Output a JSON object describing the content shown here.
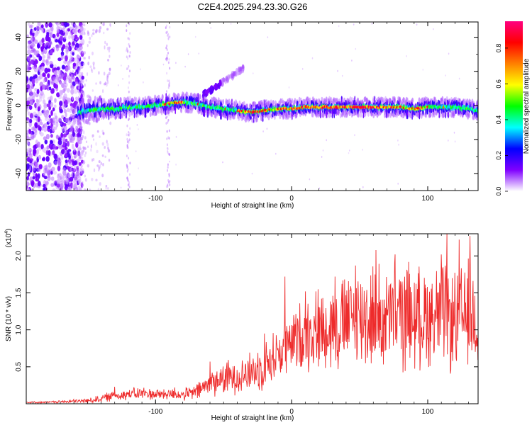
{
  "title": "C2E4.2025.294.23.30.G26",
  "chart_data": [
    {
      "type": "heatmap",
      "title": "C2E4.2025.294.23.30.G26",
      "xlabel": "Height of straight line (km)",
      "ylabel": "Frequency (Hz)",
      "xlim": [
        -195,
        137
      ],
      "ylim": [
        -50,
        49
      ],
      "xticks": [
        -100,
        0,
        100
      ],
      "yticks": [
        -40,
        -20,
        0,
        20,
        40
      ],
      "xtick_labels": [
        "-100",
        "0",
        "100"
      ],
      "ytick_labels": [
        "-40",
        "-20",
        "0",
        "20",
        "40"
      ],
      "ridge": {
        "x": [
          -157,
          -150,
          -140,
          -130,
          -120,
          -110,
          -100,
          -90,
          -80,
          -70,
          -60,
          -50,
          -40,
          -30,
          -20,
          -10,
          0,
          10,
          20,
          30,
          40,
          50,
          60,
          70,
          80,
          90,
          100,
          110,
          120,
          130,
          137
        ],
        "y": [
          -4,
          -3,
          -2,
          -2,
          -1,
          -1,
          0,
          1,
          2,
          1,
          -1,
          -2,
          -3,
          -4,
          -3,
          -2,
          -2,
          -1,
          -1,
          -1,
          -1,
          -1,
          -1,
          -1,
          -1,
          -2,
          -1,
          -1,
          -1,
          -2,
          -3
        ]
      },
      "diagonal_streak": {
        "x": [
          -65,
          -35
        ],
        "y": [
          6,
          22
        ]
      },
      "colorbar": {
        "label": "Normalized spectral amplitude",
        "range": [
          0,
          0.95
        ],
        "ticks": [
          0.0,
          0.2,
          0.4,
          0.6,
          0.8
        ],
        "tick_labels": [
          "0.0",
          "0.2",
          "0.4",
          "0.6",
          "0.8"
        ],
        "colors": [
          "#ffffff",
          "#8000ff",
          "#0000ff",
          "#00ffff",
          "#00ff00",
          "#ffff00",
          "#ff8000",
          "#ff0000",
          "#ff0080"
        ]
      }
    },
    {
      "type": "line",
      "xlabel": "Height of straight line (km)",
      "ylabel": "SNR (10 * v/v)",
      "scale_label": "(x10",
      "scale_exponent": "4",
      "scale_close": ")",
      "xlim": [
        -195,
        137
      ],
      "ylim": [
        0,
        2.3
      ],
      "xticks": [
        -100,
        0,
        100
      ],
      "yticks": [
        0.5,
        1.0,
        1.5,
        2.0
      ],
      "xtick_labels": [
        "-100",
        "0",
        "100"
      ],
      "ytick_labels": [
        "0.5",
        "1.0",
        "1.5",
        "2.0"
      ],
      "line_color": "#ee2b2b",
      "series": [
        {
          "name": "SNR",
          "x": [
            -195,
            -180,
            -165,
            -150,
            -140,
            -130,
            -120,
            -110,
            -100,
            -90,
            -80,
            -70,
            -60,
            -50,
            -40,
            -30,
            -20,
            -10,
            0,
            10,
            20,
            30,
            40,
            50,
            60,
            70,
            80,
            90,
            100,
            110,
            120,
            130,
            137
          ],
          "envelope": [
            0.02,
            0.02,
            0.03,
            0.04,
            0.07,
            0.11,
            0.13,
            0.14,
            0.13,
            0.13,
            0.12,
            0.16,
            0.28,
            0.34,
            0.38,
            0.42,
            0.52,
            0.68,
            0.82,
            0.95,
            1.02,
            1.06,
            1.1,
            1.16,
            1.18,
            1.12,
            1.2,
            1.15,
            1.2,
            1.2,
            1.1,
            1.2,
            1.1
          ],
          "spread": [
            0.01,
            0.01,
            0.02,
            0.03,
            0.05,
            0.06,
            0.07,
            0.08,
            0.07,
            0.07,
            0.07,
            0.1,
            0.16,
            0.2,
            0.22,
            0.25,
            0.28,
            0.33,
            0.38,
            0.45,
            0.5,
            0.55,
            0.6,
            0.62,
            0.65,
            0.62,
            0.66,
            0.6,
            0.62,
            0.65,
            0.6,
            0.66,
            0.6
          ],
          "peaks": [
            {
              "x": -130,
              "y": 0.23
            },
            {
              "x": -86,
              "y": 0.22
            },
            {
              "x": -60,
              "y": 0.57
            },
            {
              "x": -20,
              "y": 0.95
            },
            {
              "x": -5,
              "y": 1.72
            },
            {
              "x": 10,
              "y": 1.52
            },
            {
              "x": 32,
              "y": 1.72
            },
            {
              "x": 47,
              "y": 1.87
            },
            {
              "x": 62,
              "y": 2.08
            },
            {
              "x": 76,
              "y": 2.02
            },
            {
              "x": 86,
              "y": 1.92
            },
            {
              "x": 110,
              "y": 2.02
            },
            {
              "x": 114,
              "y": 2.3
            },
            {
              "x": 123,
              "y": 2.22
            },
            {
              "x": 131,
              "y": 2.27
            }
          ]
        }
      ]
    }
  ]
}
